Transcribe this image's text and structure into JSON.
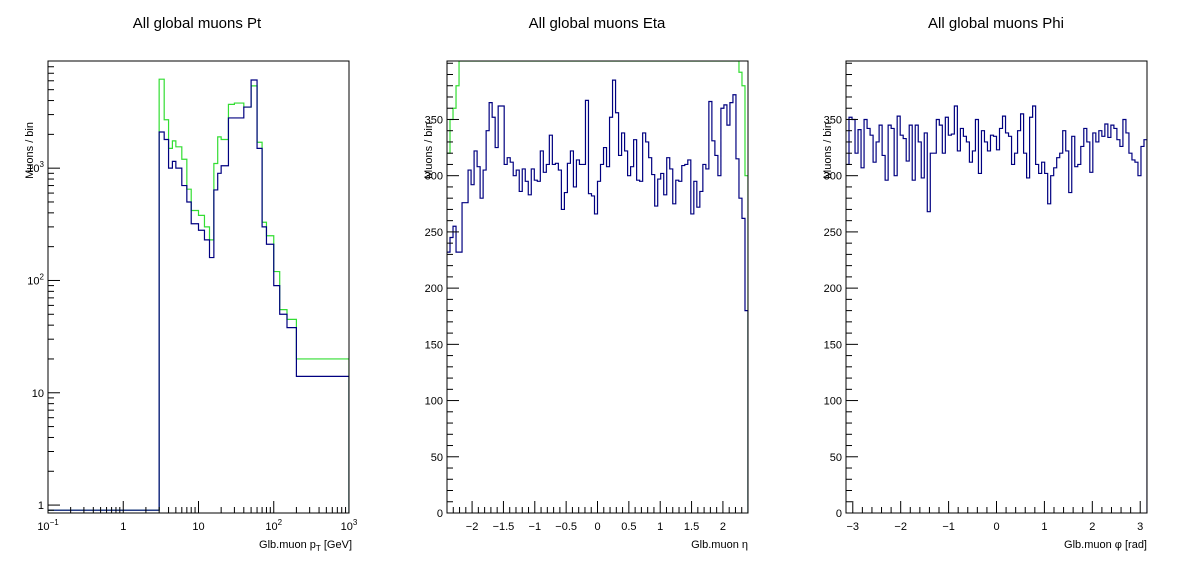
{
  "colors": {
    "series_1": "#000080",
    "series_2": "#33dd33",
    "frame": "#000000",
    "background": "#ffffff"
  },
  "chart_data": [
    {
      "type": "histogram",
      "title": "All global muons Pt",
      "xlabel": "Glb.muon p",
      "xlabel_sub": "T",
      "xlabel_unit": "[GeV]",
      "ylabel": "Muons / bin",
      "xscale": "log",
      "yscale": "log",
      "xlim": [
        0.1,
        1000
      ],
      "ylim": [
        0.85,
        9000
      ],
      "grid": false,
      "x_ticks": [
        {
          "v": 0.1,
          "base": "10",
          "exp": "−1"
        },
        {
          "v": 1,
          "text": "1"
        },
        {
          "v": 10,
          "text": "10"
        },
        {
          "v": 100,
          "base": "10",
          "exp": "2"
        },
        {
          "v": 1000,
          "base": "10",
          "exp": "3"
        }
      ],
      "y_ticks": [
        {
          "v": 1,
          "text": "1"
        },
        {
          "v": 10,
          "text": "10"
        },
        {
          "v": 100,
          "base": "10",
          "exp": "2"
        },
        {
          "v": 1000,
          "base": "10",
          "exp": "3"
        }
      ],
      "bin_edges": [
        0.1,
        3.0,
        3.5,
        4.0,
        4.5,
        5.0,
        6.0,
        7.0,
        8.0,
        10.0,
        12.0,
        14.0,
        16.0,
        18.0,
        20.0,
        25.0,
        30.0,
        40.0,
        50.0,
        60.0,
        70.0,
        80.0,
        100.0,
        120.0,
        150.0,
        200.0,
        500.0,
        1000.0
      ],
      "series": [
        {
          "color_key": "series_1",
          "values": [
            0.9,
            2100,
            1800,
            1000,
            1150,
            1000,
            700,
            500,
            320,
            280,
            230,
            160,
            640,
            900,
            1050,
            2800,
            2800,
            3500,
            6100,
            1500,
            300,
            210,
            90,
            50,
            38,
            14,
            14
          ]
        },
        {
          "color_key": "series_2",
          "values": [
            0.9,
            6200,
            2700,
            1500,
            1750,
            1550,
            1200,
            650,
            420,
            380,
            300,
            230,
            1100,
            1900,
            1800,
            3700,
            3800,
            3500,
            5400,
            1700,
            330,
            250,
            120,
            55,
            45,
            20,
            20
          ]
        }
      ]
    },
    {
      "type": "histogram",
      "title": "All global muons Eta",
      "xlabel": "Glb.muon η",
      "ylabel": "Muons / bin",
      "xlim": [
        -2.4,
        2.4
      ],
      "ylim": [
        0,
        402
      ],
      "grid": false,
      "x_ticks": [
        -2,
        -1.5,
        -1,
        -0.5,
        0,
        0.5,
        1,
        1.5,
        2
      ],
      "y_ticks": [
        0,
        50,
        100,
        150,
        200,
        250,
        300,
        350
      ],
      "bins": 100,
      "series": [
        {
          "color_key": "series_1",
          "values": [
            232,
            245,
            255,
            232,
            232,
            276,
            276,
            305,
            292,
            322,
            308,
            280,
            305,
            340,
            365,
            352,
            325,
            362,
            362,
            310,
            316,
            312,
            300,
            305,
            286,
            306,
            295,
            283,
            306,
            296,
            295,
            322,
            303,
            310,
            336,
            310,
            311,
            305,
            270,
            285,
            311,
            322,
            290,
            314,
            310,
            310,
            367,
            284,
            282,
            266,
            295,
            310,
            325,
            308,
            352,
            385,
            356,
            318,
            338,
            322,
            300,
            308,
            332,
            296,
            295,
            338,
            330,
            316,
            301,
            273,
            297,
            302,
            283,
            316,
            306,
            275,
            296,
            295,
            309,
            310,
            314,
            266,
            295,
            272,
            286,
            310,
            306,
            366,
            331,
            318,
            300,
            360,
            363,
            345,
            365,
            372,
            315,
            280,
            262,
            180
          ]
        },
        {
          "color_key": "series_2",
          "values": [
            320,
            350,
            360,
            380,
            402,
            402,
            402,
            402,
            402,
            402,
            402,
            402,
            402,
            402,
            402,
            402,
            402,
            402,
            402,
            402,
            402,
            402,
            402,
            402,
            402,
            402,
            402,
            402,
            402,
            402,
            402,
            402,
            402,
            402,
            402,
            402,
            402,
            402,
            402,
            402,
            402,
            402,
            402,
            402,
            402,
            402,
            402,
            402,
            402,
            402,
            402,
            402,
            402,
            402,
            402,
            402,
            402,
            402,
            402,
            402,
            402,
            402,
            402,
            402,
            402,
            402,
            402,
            402,
            402,
            402,
            402,
            402,
            402,
            402,
            402,
            402,
            402,
            402,
            402,
            402,
            402,
            402,
            402,
            402,
            402,
            402,
            402,
            402,
            402,
            402,
            402,
            402,
            402,
            402,
            402,
            402,
            402,
            392,
            380,
            300
          ]
        }
      ]
    },
    {
      "type": "histogram",
      "title": "All global muons Phi",
      "xlabel": "Glb.muon φ [rad]",
      "ylabel": "Muons / bin",
      "xlim": [
        -3.1416,
        3.1416
      ],
      "ylim": [
        0,
        402
      ],
      "grid": false,
      "x_ticks": [
        -3,
        -2,
        -1,
        0,
        1,
        2,
        3
      ],
      "y_ticks": [
        0,
        50,
        100,
        150,
        200,
        250,
        300,
        350
      ],
      "bins": 100,
      "series": [
        {
          "color_key": "series_1",
          "values": [
            310,
            352,
            350,
            320,
            341,
            307,
            350,
            342,
            336,
            312,
            330,
            345,
            318,
            296,
            345,
            342,
            300,
            353,
            336,
            333,
            313,
            345,
            296,
            345,
            330,
            298,
            338,
            268,
            320,
            320,
            350,
            345,
            320,
            352,
            336,
            337,
            362,
            322,
            342,
            335,
            330,
            312,
            322,
            350,
            302,
            340,
            330,
            322,
            336,
            335,
            323,
            342,
            353,
            338,
            335,
            310,
            320,
            340,
            355,
            320,
            298,
            352,
            362,
            310,
            302,
            312,
            302,
            275,
            300,
            307,
            316,
            320,
            340,
            322,
            285,
            335,
            308,
            310,
            326,
            342,
            330,
            303,
            338,
            330,
            340,
            335,
            346,
            334,
            345,
            342,
            332,
            326,
            350,
            338,
            320,
            314,
            312,
            300,
            326,
            332
          ]
        }
      ]
    }
  ]
}
